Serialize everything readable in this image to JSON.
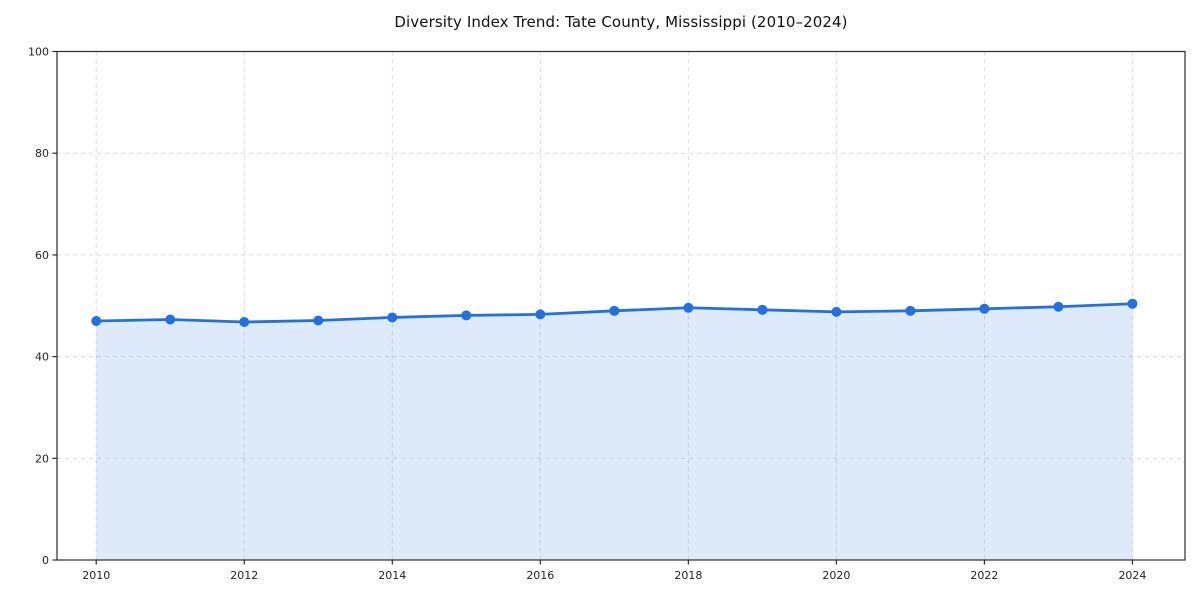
{
  "chart_data": {
    "type": "area",
    "title": "Diversity Index Trend: Tate County, Mississippi (2010–2024)",
    "series_name": "Diversity Index",
    "x": [
      2010,
      2011,
      2012,
      2013,
      2014,
      2015,
      2016,
      2017,
      2018,
      2019,
      2020,
      2021,
      2022,
      2023,
      2024
    ],
    "values": [
      47.0,
      47.3,
      46.8,
      47.1,
      47.7,
      48.1,
      48.3,
      49.0,
      49.6,
      49.2,
      48.8,
      49.0,
      49.4,
      49.8,
      50.4
    ],
    "xlabel": "",
    "ylabel": "",
    "xticks": [
      2010,
      2012,
      2014,
      2016,
      2018,
      2020,
      2022,
      2024
    ],
    "yticks": [
      0,
      20,
      40,
      60,
      80,
      100
    ],
    "xlim": [
      2009.47,
      2024.71
    ],
    "ylim": [
      0,
      100
    ],
    "grid": true,
    "grid_style": "dashed",
    "legend_position": "none",
    "marker": "circle",
    "colors": {
      "line": "#2271e0",
      "marker": "#2271e0",
      "fill": "#2271e0",
      "fill_opacity": 0.15,
      "grid": "#d9d9d9",
      "spine": "#2b2b2b",
      "tick_label": "#262626",
      "title": "#111111",
      "background": "#ffffff"
    }
  }
}
